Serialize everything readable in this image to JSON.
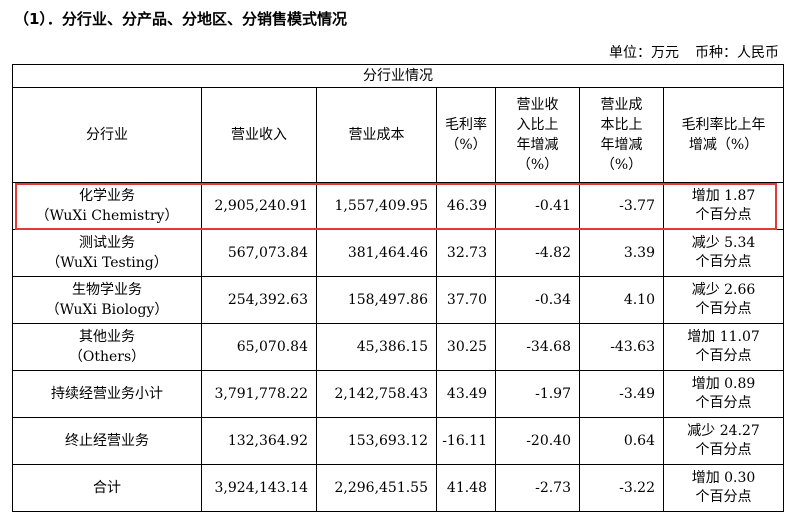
{
  "heading": "（1）．分行业、分产品、分地区、分销售模式情况",
  "unit_label": "单位：万元",
  "currency_label": "币种：人民币",
  "table": {
    "caption": "分行业情况",
    "columns": [
      "分行业",
      "营业收入",
      "营业成本",
      "毛利率（%）",
      "营业收入比上年增减（%）",
      "营业成本比上年增减（%）",
      "毛利率比上年增减（%）"
    ],
    "rows": [
      {
        "seg": "化学业务",
        "seg_en": "（WuXi Chemistry）",
        "revenue": "2,905,240.91",
        "cost": "1,557,409.95",
        "margin": "46.39",
        "rev_chg": "-0.41",
        "cost_chg": "-3.77",
        "margin_chg_1": "增加 1.87",
        "margin_chg_2": "个百分点"
      },
      {
        "seg": "测试业务",
        "seg_en": "（WuXi Testing）",
        "revenue": "567,073.84",
        "cost": "381,464.46",
        "margin": "32.73",
        "rev_chg": "-4.82",
        "cost_chg": "3.39",
        "margin_chg_1": "减少 5.34",
        "margin_chg_2": "个百分点"
      },
      {
        "seg": "生物学业务",
        "seg_en": "（WuXi Biology）",
        "revenue": "254,392.63",
        "cost": "158,497.86",
        "margin": "37.70",
        "rev_chg": "-0.34",
        "cost_chg": "4.10",
        "margin_chg_1": "减少 2.66",
        "margin_chg_2": "个百分点"
      },
      {
        "seg": "其他业务",
        "seg_en": "（Others）",
        "revenue": "65,070.84",
        "cost": "45,386.15",
        "margin": "30.25",
        "rev_chg": "-34.68",
        "cost_chg": "-43.63",
        "margin_chg_1": "增加 11.07",
        "margin_chg_2": "个百分点"
      },
      {
        "seg": "持续经营业务小计",
        "seg_en": "",
        "revenue": "3,791,778.22",
        "cost": "2,142,758.43",
        "margin": "43.49",
        "rev_chg": "-1.97",
        "cost_chg": "-3.49",
        "margin_chg_1": "增加 0.89",
        "margin_chg_2": "个百分点"
      },
      {
        "seg": "终止经营业务",
        "seg_en": "",
        "revenue": "132,364.92",
        "cost": "153,693.12",
        "margin": "-16.11",
        "rev_chg": "-20.40",
        "cost_chg": "0.64",
        "margin_chg_1": "减少 24.27",
        "margin_chg_2": "个百分点"
      },
      {
        "seg": "合计",
        "seg_en": "",
        "revenue": "3,924,143.14",
        "cost": "2,296,451.55",
        "margin": "41.48",
        "rev_chg": "-2.73",
        "cost_chg": "-3.22",
        "margin_chg_1": "增加 0.30",
        "margin_chg_2": "个百分点"
      }
    ]
  },
  "highlight_color": "#e53935"
}
